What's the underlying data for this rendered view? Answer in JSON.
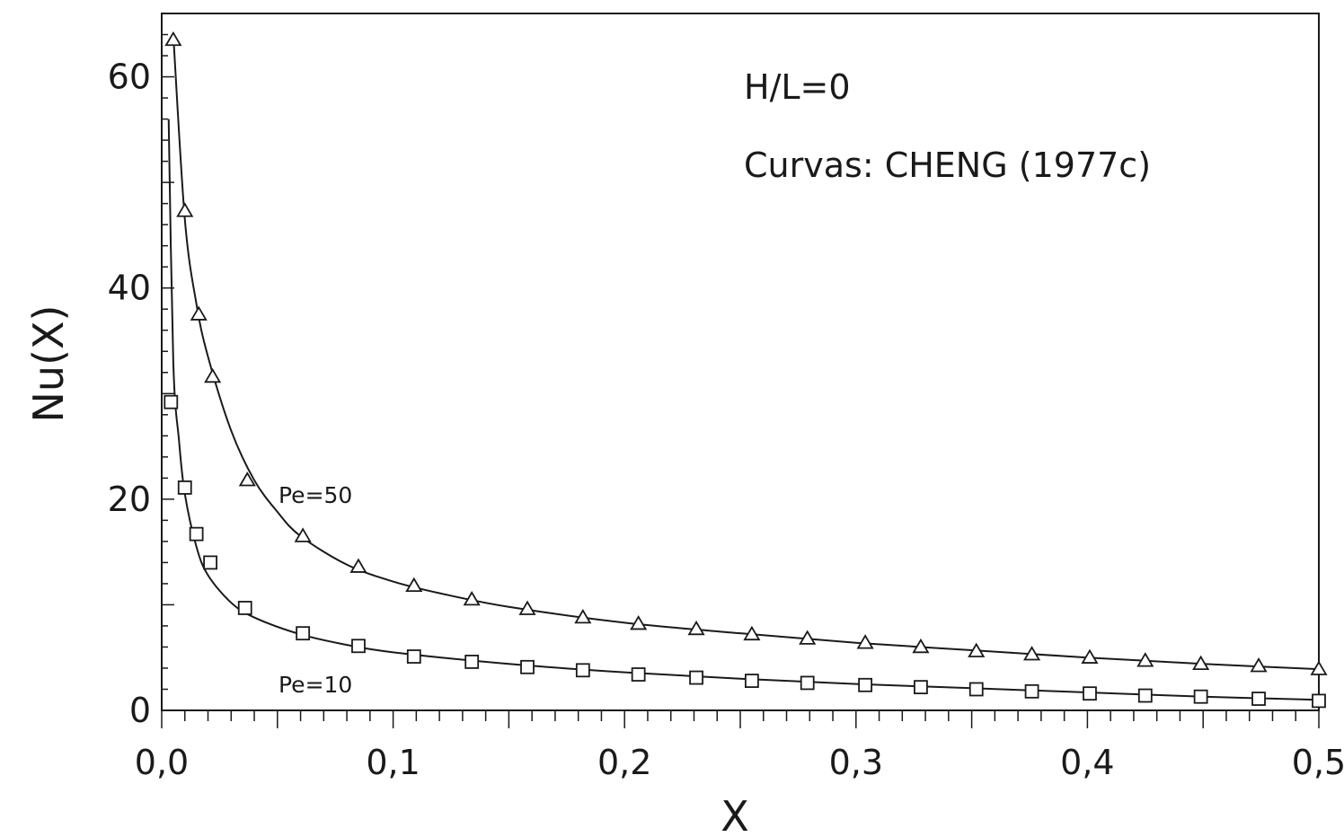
{
  "chart_data": {
    "type": "scatter",
    "xlabel": "X",
    "ylabel": "Nu(X)",
    "xlim": [
      0,
      0.5
    ],
    "ylim": [
      0,
      66
    ],
    "x_ticks": [
      0,
      0.1,
      0.2,
      0.3,
      0.4,
      0.5
    ],
    "x_tick_labels": [
      "0,0",
      "0,1",
      "0,2",
      "0,3",
      "0,4",
      "0,5"
    ],
    "y_ticks": [
      0,
      20,
      40,
      60
    ],
    "y_tick_labels": [
      "0",
      "20",
      "40",
      "60"
    ],
    "grid": false,
    "annotations": [
      "H/L=0",
      "Curvas: CHENG (1977c)"
    ],
    "series": [
      {
        "name": "Pe=50",
        "marker": "triangle",
        "points": [
          [
            0.005,
            63.5
          ],
          [
            0.01,
            47.3
          ],
          [
            0.016,
            37.5
          ],
          [
            0.022,
            31.6
          ],
          [
            0.037,
            21.8
          ],
          [
            0.061,
            16.5
          ],
          [
            0.085,
            13.6
          ],
          [
            0.109,
            11.8
          ],
          [
            0.134,
            10.5
          ],
          [
            0.158,
            9.6
          ],
          [
            0.182,
            8.8
          ],
          [
            0.206,
            8.2
          ],
          [
            0.231,
            7.7
          ],
          [
            0.255,
            7.2
          ],
          [
            0.279,
            6.8
          ],
          [
            0.304,
            6.4
          ],
          [
            0.328,
            6.0
          ],
          [
            0.352,
            5.6
          ],
          [
            0.376,
            5.3
          ],
          [
            0.401,
            5.0
          ],
          [
            0.425,
            4.7
          ],
          [
            0.449,
            4.4
          ],
          [
            0.474,
            4.2
          ],
          [
            0.5,
            3.9
          ]
        ],
        "curve": [
          [
            0.005,
            64
          ],
          [
            0.01,
            46.5
          ],
          [
            0.015,
            38.5
          ],
          [
            0.02,
            33.5
          ],
          [
            0.03,
            26.5
          ],
          [
            0.04,
            21.8
          ],
          [
            0.05,
            18.8
          ],
          [
            0.06,
            16.5
          ],
          [
            0.08,
            13.8
          ],
          [
            0.1,
            12.2
          ],
          [
            0.12,
            11.1
          ],
          [
            0.15,
            9.8
          ],
          [
            0.2,
            8.3
          ],
          [
            0.25,
            7.3
          ],
          [
            0.3,
            6.4
          ],
          [
            0.35,
            5.7
          ],
          [
            0.4,
            5.0
          ],
          [
            0.45,
            4.4
          ],
          [
            0.5,
            3.9
          ]
        ]
      },
      {
        "name": "Pe=10",
        "marker": "square",
        "points": [
          [
            0.004,
            29.2
          ],
          [
            0.01,
            21.1
          ],
          [
            0.015,
            16.7
          ],
          [
            0.021,
            14.0
          ],
          [
            0.036,
            9.7
          ],
          [
            0.061,
            7.3
          ],
          [
            0.085,
            6.1
          ],
          [
            0.109,
            5.1
          ],
          [
            0.134,
            4.6
          ],
          [
            0.158,
            4.1
          ],
          [
            0.182,
            3.8
          ],
          [
            0.206,
            3.4
          ],
          [
            0.231,
            3.1
          ],
          [
            0.255,
            2.8
          ],
          [
            0.279,
            2.6
          ],
          [
            0.304,
            2.4
          ],
          [
            0.328,
            2.2
          ],
          [
            0.352,
            2.0
          ],
          [
            0.376,
            1.8
          ],
          [
            0.401,
            1.6
          ],
          [
            0.425,
            1.4
          ],
          [
            0.449,
            1.3
          ],
          [
            0.474,
            1.1
          ],
          [
            0.5,
            0.9
          ]
        ],
        "curve": [
          [
            0.003,
            56
          ],
          [
            0.005,
            33
          ],
          [
            0.0075,
            25.5
          ],
          [
            0.01,
            20.5
          ],
          [
            0.015,
            15.5
          ],
          [
            0.02,
            12.8
          ],
          [
            0.03,
            10.2
          ],
          [
            0.04,
            8.8
          ],
          [
            0.06,
            7.2
          ],
          [
            0.08,
            6.2
          ],
          [
            0.1,
            5.5
          ],
          [
            0.15,
            4.4
          ],
          [
            0.2,
            3.6
          ],
          [
            0.25,
            3.0
          ],
          [
            0.3,
            2.5
          ],
          [
            0.35,
            2.1
          ],
          [
            0.4,
            1.7
          ],
          [
            0.45,
            1.3
          ],
          [
            0.5,
            1.0
          ]
        ]
      }
    ]
  }
}
